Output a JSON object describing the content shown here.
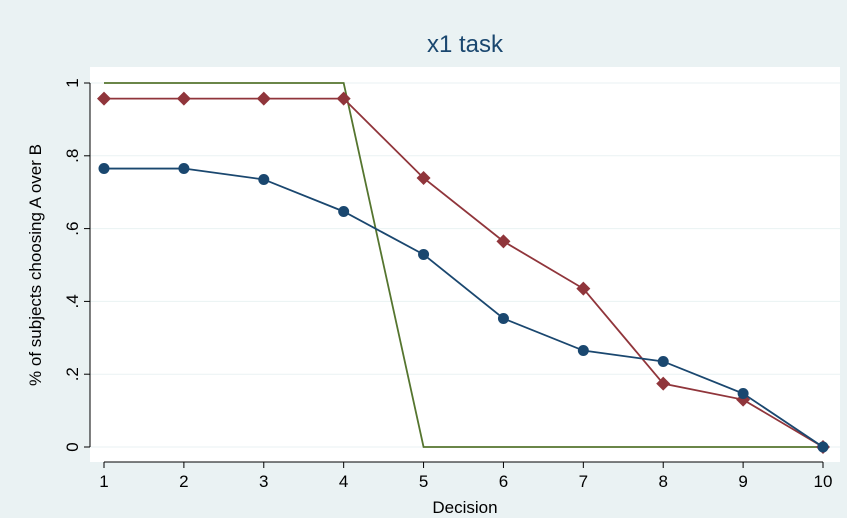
{
  "chart_data": {
    "type": "line",
    "title": "x1 task",
    "xlabel": "Decision",
    "ylabel": "% of subjects choosing A over B",
    "x": [
      1,
      2,
      3,
      4,
      5,
      6,
      7,
      8,
      9,
      10
    ],
    "xlim": [
      1,
      10
    ],
    "ylim": [
      0,
      1
    ],
    "xticks": [
      "1",
      "2",
      "3",
      "4",
      "5",
      "6",
      "7",
      "8",
      "9",
      "10"
    ],
    "yticks": [
      {
        "value": 0,
        "label": "0"
      },
      {
        "value": 0.2,
        "label": ".2"
      },
      {
        "value": 0.4,
        "label": ".4"
      },
      {
        "value": 0.6,
        "label": ".6"
      },
      {
        "value": 0.8,
        "label": ".8"
      },
      {
        "value": 1,
        "label": "1"
      }
    ],
    "grid": "horizontal",
    "legend": "none",
    "series": [
      {
        "values": [
          0.765,
          0.765,
          0.735,
          0.647,
          0.529,
          0.353,
          0.265,
          0.235,
          0.147,
          0.0
        ],
        "color": "#1a476f",
        "marker": "circle"
      },
      {
        "values": [
          0.957,
          0.957,
          0.957,
          0.957,
          0.739,
          0.565,
          0.435,
          0.174,
          0.13,
          0.0
        ],
        "color": "#90353b",
        "marker": "diamond"
      },
      {
        "values": [
          1,
          1,
          1,
          1,
          0,
          0,
          0,
          0,
          0,
          0
        ],
        "color": "#55752f",
        "marker": "none"
      }
    ]
  }
}
